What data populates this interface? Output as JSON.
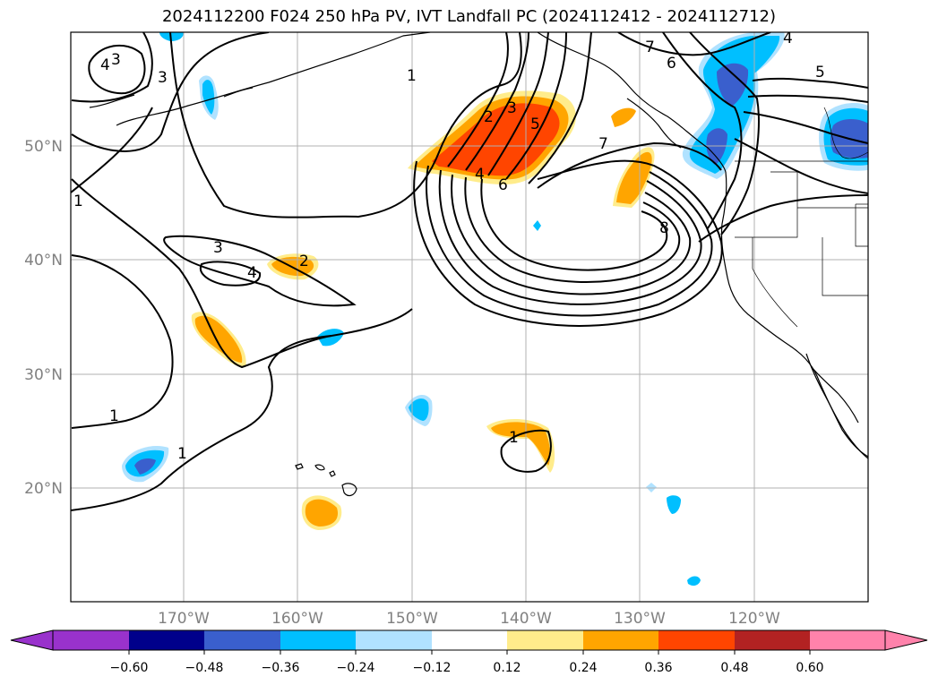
{
  "title": "2024112200 F024 250 hPa PV, IVT Landfall PC (2024112412 - 2024112712)",
  "lat_labels": [
    "50°N",
    "40°N",
    "30°N",
    "20°N"
  ],
  "lon_labels": [
    "170°W",
    "160°W",
    "150°W",
    "140°W",
    "130°W",
    "120°W"
  ],
  "colorbar": {
    "ticks": [
      "−0.60",
      "−0.48",
      "−0.36",
      "−0.24",
      "−0.12",
      "0.12",
      "0.24",
      "0.36",
      "0.48",
      "0.60"
    ],
    "colors": [
      "#9932cc",
      "#00008b",
      "#3a5fcd",
      "#00bfff",
      "#b0e2ff",
      "#ffffff",
      "#ffec8b",
      "#ffa500",
      "#ff4500",
      "#b22222",
      "#ff82ab"
    ]
  },
  "contour_labels": [
    "4",
    "3",
    "3",
    "1",
    "1",
    "3",
    "4",
    "2",
    "1",
    "1",
    "2",
    "3",
    "5",
    "4",
    "6",
    "7",
    "7",
    "6",
    "8",
    "1",
    "4",
    "5"
  ],
  "colors": {
    "blue": "#00bfff",
    "light_blue": "#b0e2ff",
    "navy_blue": "#3a5fcd",
    "orange": "#ffa500",
    "red_orange": "#ff4500",
    "yellow": "#ffec8b"
  }
}
